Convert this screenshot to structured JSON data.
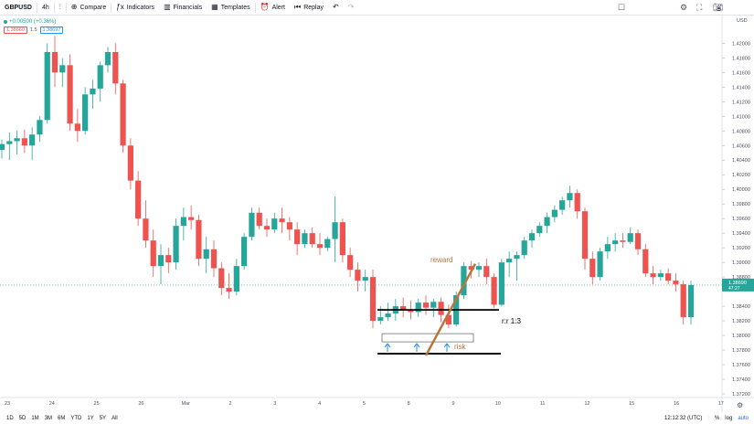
{
  "toolbar": {
    "symbol": "GBPUSD",
    "interval": "4h",
    "compare": "Compare",
    "indicators": "Indicators",
    "financials": "Financials",
    "templates": "Templates",
    "alert": "Alert",
    "replay": "Replay"
  },
  "legend": {
    "change": "+0.00500 (+0.36%)",
    "sell_price": "1.38660",
    "spread": "1.5",
    "buy_price": "1.38697"
  },
  "price_axis": {
    "currency": "USD",
    "ticks": [
      "1.42000",
      "1.41800",
      "1.41600",
      "1.41400",
      "1.41200",
      "1.41000",
      "1.40800",
      "1.40600",
      "1.40400",
      "1.40200",
      "1.40000",
      "1.39800",
      "1.39600",
      "1.39400",
      "1.39200",
      "1.39000",
      "1.38800",
      "1.38400",
      "1.38200",
      "1.38000",
      "1.37800",
      "1.37600",
      "1.37400",
      "1.37200"
    ],
    "current_price": "1.38690",
    "countdown": "47:27"
  },
  "time_axis": {
    "ticks": [
      "23",
      "24",
      "25",
      "26",
      "Mar",
      "2",
      "3",
      "4",
      "5",
      "8",
      "9",
      "10",
      "11",
      "12",
      "15",
      "16",
      "17"
    ]
  },
  "annotations": {
    "reward": "reward",
    "rr": "r:r 1:3",
    "risk": "risk"
  },
  "bottom": {
    "ranges": [
      "1D",
      "5D",
      "1M",
      "3M",
      "6M",
      "YTD",
      "1Y",
      "5Y",
      "All"
    ],
    "time": "12:12:32 (UTC)",
    "percent": "%",
    "log": "log",
    "auto": "auto"
  },
  "colors": {
    "up": "#26a69a",
    "down": "#ef5350",
    "annotation": "#b5773c"
  },
  "chart_data": {
    "type": "candlestick",
    "symbol": "GBPUSD",
    "interval": "4h",
    "candles": [
      {
        "o": 1.4054,
        "h": 1.4068,
        "l": 1.4042,
        "c": 1.4062
      },
      {
        "o": 1.4062,
        "h": 1.4078,
        "l": 1.404,
        "c": 1.4066
      },
      {
        "o": 1.4066,
        "h": 1.408,
        "l": 1.4048,
        "c": 1.407
      },
      {
        "o": 1.407,
        "h": 1.4082,
        "l": 1.405,
        "c": 1.406
      },
      {
        "o": 1.406,
        "h": 1.4085,
        "l": 1.404,
        "c": 1.4075
      },
      {
        "o": 1.4075,
        "h": 1.41,
        "l": 1.4065,
        "c": 1.4095
      },
      {
        "o": 1.4095,
        "h": 1.42,
        "l": 1.409,
        "c": 1.4188
      },
      {
        "o": 1.4188,
        "h": 1.421,
        "l": 1.414,
        "c": 1.416
      },
      {
        "o": 1.416,
        "h": 1.418,
        "l": 1.414,
        "c": 1.417
      },
      {
        "o": 1.417,
        "h": 1.4185,
        "l": 1.408,
        "c": 1.409
      },
      {
        "o": 1.409,
        "h": 1.411,
        "l": 1.4065,
        "c": 1.408
      },
      {
        "o": 1.408,
        "h": 1.414,
        "l": 1.4075,
        "c": 1.413
      },
      {
        "o": 1.413,
        "h": 1.415,
        "l": 1.411,
        "c": 1.4138
      },
      {
        "o": 1.4138,
        "h": 1.4175,
        "l": 1.412,
        "c": 1.417
      },
      {
        "o": 1.417,
        "h": 1.4195,
        "l": 1.416,
        "c": 1.4188
      },
      {
        "o": 1.4188,
        "h": 1.42,
        "l": 1.413,
        "c": 1.4145
      },
      {
        "o": 1.4145,
        "h": 1.415,
        "l": 1.405,
        "c": 1.406
      },
      {
        "o": 1.406,
        "h": 1.407,
        "l": 1.4,
        "c": 1.4012
      },
      {
        "o": 1.4012,
        "h": 1.4025,
        "l": 1.395,
        "c": 1.396
      },
      {
        "o": 1.396,
        "h": 1.3985,
        "l": 1.392,
        "c": 1.393
      },
      {
        "o": 1.393,
        "h": 1.3945,
        "l": 1.388,
        "c": 1.3895
      },
      {
        "o": 1.3895,
        "h": 1.3925,
        "l": 1.387,
        "c": 1.391
      },
      {
        "o": 1.391,
        "h": 1.392,
        "l": 1.3885,
        "c": 1.39
      },
      {
        "o": 1.39,
        "h": 1.396,
        "l": 1.389,
        "c": 1.395
      },
      {
        "o": 1.395,
        "h": 1.3975,
        "l": 1.393,
        "c": 1.3962
      },
      {
        "o": 1.3962,
        "h": 1.3978,
        "l": 1.3945,
        "c": 1.3958
      },
      {
        "o": 1.3958,
        "h": 1.3965,
        "l": 1.3895,
        "c": 1.3905
      },
      {
        "o": 1.3905,
        "h": 1.3935,
        "l": 1.3885,
        "c": 1.3918
      },
      {
        "o": 1.3918,
        "h": 1.393,
        "l": 1.388,
        "c": 1.3892
      },
      {
        "o": 1.3892,
        "h": 1.39,
        "l": 1.3855,
        "c": 1.3865
      },
      {
        "o": 1.3865,
        "h": 1.3885,
        "l": 1.385,
        "c": 1.386
      },
      {
        "o": 1.386,
        "h": 1.3905,
        "l": 1.3855,
        "c": 1.3895
      },
      {
        "o": 1.3895,
        "h": 1.394,
        "l": 1.389,
        "c": 1.3935
      },
      {
        "o": 1.3935,
        "h": 1.3975,
        "l": 1.393,
        "c": 1.3968
      },
      {
        "o": 1.3968,
        "h": 1.3975,
        "l": 1.3945,
        "c": 1.395
      },
      {
        "o": 1.395,
        "h": 1.396,
        "l": 1.3935,
        "c": 1.3945
      },
      {
        "o": 1.3945,
        "h": 1.3968,
        "l": 1.394,
        "c": 1.396
      },
      {
        "o": 1.396,
        "h": 1.3975,
        "l": 1.394,
        "c": 1.3955
      },
      {
        "o": 1.3955,
        "h": 1.3962,
        "l": 1.393,
        "c": 1.3945
      },
      {
        "o": 1.3945,
        "h": 1.3955,
        "l": 1.391,
        "c": 1.3925
      },
      {
        "o": 1.3925,
        "h": 1.3945,
        "l": 1.392,
        "c": 1.394
      },
      {
        "o": 1.394,
        "h": 1.3948,
        "l": 1.392,
        "c": 1.3925
      },
      {
        "o": 1.3925,
        "h": 1.394,
        "l": 1.391,
        "c": 1.392
      },
      {
        "o": 1.392,
        "h": 1.3935,
        "l": 1.3915,
        "c": 1.3932
      },
      {
        "o": 1.3932,
        "h": 1.399,
        "l": 1.39,
        "c": 1.3955
      },
      {
        "o": 1.3955,
        "h": 1.396,
        "l": 1.39,
        "c": 1.391
      },
      {
        "o": 1.391,
        "h": 1.392,
        "l": 1.388,
        "c": 1.389
      },
      {
        "o": 1.389,
        "h": 1.39,
        "l": 1.386,
        "c": 1.3875
      },
      {
        "o": 1.3875,
        "h": 1.389,
        "l": 1.386,
        "c": 1.388
      },
      {
        "o": 1.388,
        "h": 1.389,
        "l": 1.381,
        "c": 1.382
      },
      {
        "o": 1.382,
        "h": 1.384,
        "l": 1.3815,
        "c": 1.3825
      },
      {
        "o": 1.3825,
        "h": 1.3845,
        "l": 1.382,
        "c": 1.383
      },
      {
        "o": 1.383,
        "h": 1.385,
        "l": 1.382,
        "c": 1.384
      },
      {
        "o": 1.384,
        "h": 1.3852,
        "l": 1.3825,
        "c": 1.3835
      },
      {
        "o": 1.3835,
        "h": 1.3848,
        "l": 1.3822,
        "c": 1.3832
      },
      {
        "o": 1.3832,
        "h": 1.385,
        "l": 1.3825,
        "c": 1.3845
      },
      {
        "o": 1.3845,
        "h": 1.3855,
        "l": 1.3828,
        "c": 1.3838
      },
      {
        "o": 1.3838,
        "h": 1.385,
        "l": 1.3825,
        "c": 1.3846
      },
      {
        "o": 1.3846,
        "h": 1.3852,
        "l": 1.3818,
        "c": 1.3828
      },
      {
        "o": 1.3828,
        "h": 1.3842,
        "l": 1.381,
        "c": 1.3815
      },
      {
        "o": 1.3815,
        "h": 1.386,
        "l": 1.3812,
        "c": 1.3855
      },
      {
        "o": 1.3855,
        "h": 1.39,
        "l": 1.385,
        "c": 1.3895
      },
      {
        "o": 1.3895,
        "h": 1.3902,
        "l": 1.3878,
        "c": 1.389
      },
      {
        "o": 1.389,
        "h": 1.39,
        "l": 1.388,
        "c": 1.3895
      },
      {
        "o": 1.3895,
        "h": 1.3905,
        "l": 1.387,
        "c": 1.388
      },
      {
        "o": 1.388,
        "h": 1.3885,
        "l": 1.3838,
        "c": 1.3842
      },
      {
        "o": 1.3842,
        "h": 1.3905,
        "l": 1.384,
        "c": 1.39
      },
      {
        "o": 1.39,
        "h": 1.3915,
        "l": 1.388,
        "c": 1.3905
      },
      {
        "o": 1.3905,
        "h": 1.3915,
        "l": 1.3875,
        "c": 1.391
      },
      {
        "o": 1.391,
        "h": 1.3935,
        "l": 1.3905,
        "c": 1.393
      },
      {
        "o": 1.393,
        "h": 1.3945,
        "l": 1.392,
        "c": 1.394
      },
      {
        "o": 1.394,
        "h": 1.3955,
        "l": 1.3935,
        "c": 1.395
      },
      {
        "o": 1.395,
        "h": 1.3968,
        "l": 1.394,
        "c": 1.3962
      },
      {
        "o": 1.3962,
        "h": 1.3978,
        "l": 1.3955,
        "c": 1.3972
      },
      {
        "o": 1.3972,
        "h": 1.399,
        "l": 1.3965,
        "c": 1.3985
      },
      {
        "o": 1.3985,
        "h": 1.4005,
        "l": 1.3975,
        "c": 1.3995
      },
      {
        "o": 1.3995,
        "h": 1.4,
        "l": 1.396,
        "c": 1.397
      },
      {
        "o": 1.397,
        "h": 1.3975,
        "l": 1.389,
        "c": 1.3905
      },
      {
        "o": 1.3905,
        "h": 1.3915,
        "l": 1.387,
        "c": 1.388
      },
      {
        "o": 1.388,
        "h": 1.392,
        "l": 1.3875,
        "c": 1.3915
      },
      {
        "o": 1.3915,
        "h": 1.3935,
        "l": 1.3905,
        "c": 1.3925
      },
      {
        "o": 1.3925,
        "h": 1.394,
        "l": 1.3915,
        "c": 1.393
      },
      {
        "o": 1.393,
        "h": 1.394,
        "l": 1.392,
        "c": 1.3928
      },
      {
        "o": 1.3928,
        "h": 1.3948,
        "l": 1.3925,
        "c": 1.394
      },
      {
        "o": 1.394,
        "h": 1.3945,
        "l": 1.391,
        "c": 1.3918
      },
      {
        "o": 1.3918,
        "h": 1.3925,
        "l": 1.388,
        "c": 1.3885
      },
      {
        "o": 1.3885,
        "h": 1.3895,
        "l": 1.387,
        "c": 1.388
      },
      {
        "o": 1.388,
        "h": 1.389,
        "l": 1.3875,
        "c": 1.3885
      },
      {
        "o": 1.3885,
        "h": 1.3892,
        "l": 1.387,
        "c": 1.3875
      },
      {
        "o": 1.3875,
        "h": 1.3885,
        "l": 1.386,
        "c": 1.387
      },
      {
        "o": 1.387,
        "h": 1.3875,
        "l": 1.3815,
        "c": 1.3825
      },
      {
        "o": 1.3825,
        "h": 1.3875,
        "l": 1.3815,
        "c": 1.3869
      }
    ],
    "horizontal_lines": [
      1.3835,
      1.3775
    ],
    "current_price": 1.3869,
    "ylim": [
      1.3715,
      1.4238
    ]
  }
}
